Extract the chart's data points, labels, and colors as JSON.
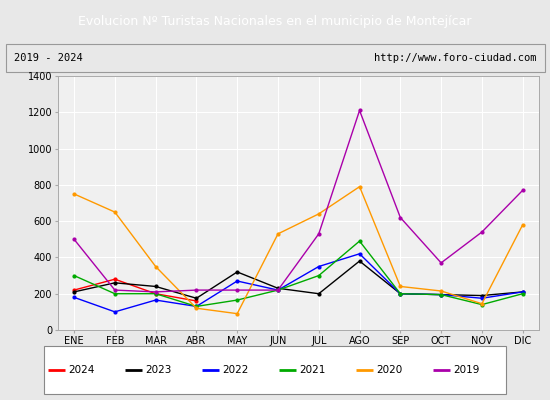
{
  "title": "Evolucion Nº Turistas Nacionales en el municipio de Montejícar",
  "subtitle_left": "2019 - 2024",
  "subtitle_right": "http://www.foro-ciudad.com",
  "title_bg": "#4472c4",
  "title_color": "#ffffff",
  "months": [
    "ENE",
    "FEB",
    "MAR",
    "ABR",
    "MAY",
    "JUN",
    "JUL",
    "AGO",
    "SEP",
    "OCT",
    "NOV",
    "DIC"
  ],
  "ylim": [
    0,
    1400
  ],
  "yticks": [
    0,
    200,
    400,
    600,
    800,
    1000,
    1200,
    1400
  ],
  "series": {
    "2024": {
      "color": "#ff0000",
      "data": [
        220,
        280,
        200,
        160,
        null,
        null,
        null,
        null,
        null,
        null,
        null,
        null
      ]
    },
    "2023": {
      "color": "#000000",
      "data": [
        210,
        260,
        240,
        175,
        320,
        230,
        200,
        380,
        200,
        195,
        190,
        210
      ]
    },
    "2022": {
      "color": "#0000ff",
      "data": [
        180,
        100,
        165,
        130,
        270,
        220,
        350,
        420,
        200,
        195,
        175,
        210
      ]
    },
    "2021": {
      "color": "#00aa00",
      "data": [
        300,
        200,
        200,
        130,
        165,
        220,
        300,
        490,
        200,
        195,
        140,
        200
      ]
    },
    "2020": {
      "color": "#ff9900",
      "data": [
        750,
        650,
        350,
        120,
        90,
        530,
        640,
        790,
        240,
        215,
        145,
        580
      ]
    },
    "2019": {
      "color": "#aa00aa",
      "data": [
        500,
        220,
        210,
        220,
        220,
        220,
        530,
        1210,
        620,
        370,
        540,
        770
      ]
    }
  },
  "legend_order": [
    "2024",
    "2023",
    "2022",
    "2021",
    "2020",
    "2019"
  ],
  "fig_bg": "#e8e8e8",
  "plot_bg": "#f0f0f0",
  "grid_color": "#ffffff",
  "subtitle_bg": "#e8e8e8",
  "title_fontsize": 9,
  "subtitle_fontsize": 7.5,
  "tick_fontsize": 7,
  "legend_fontsize": 7.5
}
